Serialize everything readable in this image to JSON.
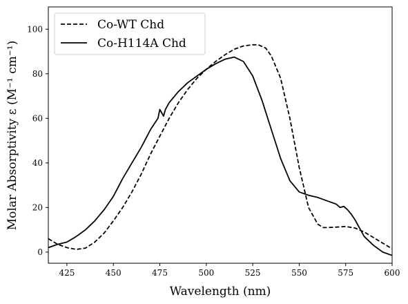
{
  "chart_data": {
    "type": "line",
    "title": "",
    "xlabel": "Wavelength (nm)",
    "ylabel": "Molar Absorptivity ε (M⁻¹ cm⁻¹)",
    "xlim": [
      415,
      600
    ],
    "ylim": [
      -5,
      110
    ],
    "xticks": [
      425,
      450,
      475,
      500,
      525,
      550,
      575,
      600
    ],
    "yticks": [
      0,
      20,
      40,
      60,
      80,
      100
    ],
    "legend_position": "upper-left",
    "grid": false,
    "series": [
      {
        "name": "Co-WT Chd",
        "style": "dashed",
        "color": "#000000",
        "x": [
          415,
          420,
          425,
          430,
          435,
          440,
          445,
          450,
          455,
          460,
          465,
          470,
          475,
          480,
          485,
          490,
          495,
          500,
          505,
          510,
          515,
          520,
          525,
          528,
          532,
          535,
          540,
          545,
          550,
          555,
          560,
          563,
          565,
          570,
          575,
          580,
          585,
          590,
          595,
          600
        ],
        "y": [
          6,
          3.5,
          2,
          1.2,
          1.8,
          4.5,
          8.5,
          14,
          20,
          27,
          35,
          44,
          52,
          60,
          67,
          73,
          78,
          82,
          85.5,
          88.5,
          91,
          92.5,
          93,
          93,
          91.5,
          88,
          78,
          60,
          38,
          20,
          12.5,
          11,
          11,
          11.2,
          11.5,
          10.8,
          9,
          6.5,
          4,
          1.5
        ]
      },
      {
        "name": "Co-H114A Chd",
        "style": "solid",
        "color": "#000000",
        "x": [
          415,
          420,
          425,
          430,
          435,
          440,
          445,
          450,
          455,
          460,
          465,
          470,
          474,
          475,
          476,
          477,
          478,
          480,
          485,
          490,
          495,
          500,
          505,
          510,
          515,
          520,
          525,
          530,
          535,
          540,
          545,
          550,
          555,
          560,
          565,
          570,
          572,
          574,
          576,
          578,
          580,
          585,
          590,
          595,
          600
        ],
        "y": [
          2,
          3.5,
          4.5,
          7,
          10,
          14,
          19,
          25,
          33,
          40,
          47,
          55,
          60,
          64,
          62.5,
          61,
          64,
          67,
          72,
          76,
          79,
          82,
          84.5,
          86.5,
          87.5,
          85.5,
          79,
          68,
          55,
          42,
          32,
          27,
          25.5,
          24.5,
          23,
          21.5,
          20,
          20.5,
          19,
          17,
          14.5,
          7,
          3,
          0,
          -1.5
        ]
      }
    ]
  }
}
